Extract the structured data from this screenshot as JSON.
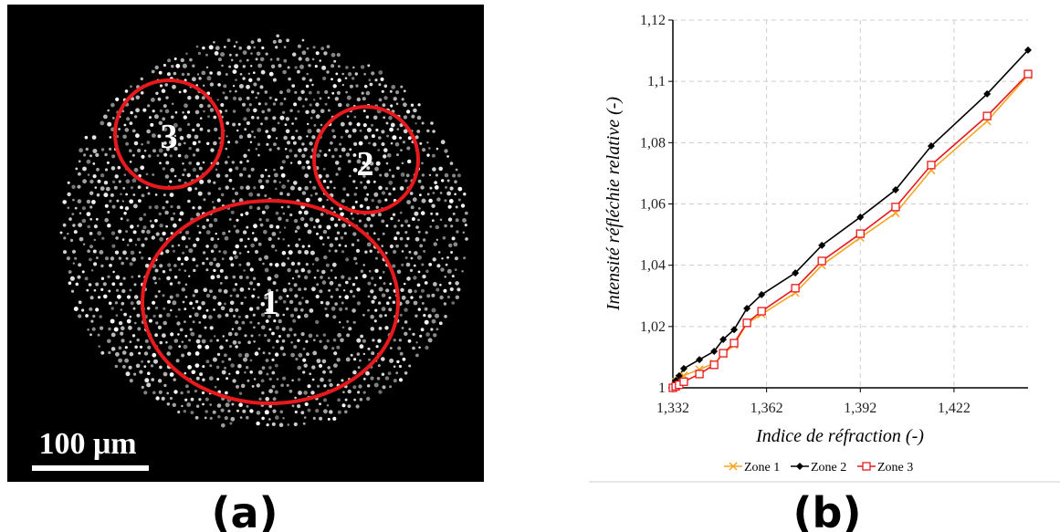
{
  "image_panel": {
    "zone_labels": [
      "1",
      "2",
      "3"
    ],
    "scale_bar": "100 μm",
    "panel_label": "(a)"
  },
  "chart_panel_label": "(b)",
  "chart_data": {
    "type": "line",
    "y_label": "Intensité réfléchie relative (-)",
    "x_label": "Indice de réfraction (-)",
    "x": [
      1.332,
      1.3329,
      1.334,
      1.3355,
      1.3405,
      1.3452,
      1.3481,
      1.3516,
      1.3557,
      1.3604,
      1.3712,
      1.3797,
      1.392,
      1.4033,
      1.4147,
      1.4326,
      1.4457
    ],
    "series": [
      {
        "name": "Zone 1",
        "color": "#f5a623",
        "marker": "x",
        "values": [
          1.0,
          1.002,
          1.003,
          1.004,
          1.006,
          1.008,
          1.011,
          1.014,
          1.021,
          1.024,
          1.031,
          1.04,
          1.049,
          1.057,
          1.071,
          1.087,
          1.102
        ]
      },
      {
        "name": "Zone 2",
        "color": "#000000",
        "marker": "diamond",
        "values": [
          1.0,
          1.0024,
          1.0039,
          1.0063,
          1.0092,
          1.0119,
          1.0158,
          1.019,
          1.0259,
          1.0304,
          1.0375,
          1.0465,
          1.0557,
          1.0646,
          1.0789,
          1.0959,
          1.1102
        ]
      },
      {
        "name": "Zone 3",
        "color": "#e8191c",
        "marker": "square",
        "values": [
          1.0,
          1.0005,
          1.001,
          1.002,
          1.0045,
          1.0075,
          1.0113,
          1.0146,
          1.0212,
          1.025,
          1.0325,
          1.0414,
          1.0503,
          1.059,
          1.0727,
          1.0887,
          1.1024
        ]
      }
    ],
    "xlim": [
      1.332,
      1.4457
    ],
    "ylim": [
      1,
      1.12
    ],
    "xticks": [
      {
        "value": 1.332,
        "label": "1,332"
      },
      {
        "value": 1.362,
        "label": "1,362"
      },
      {
        "value": 1.392,
        "label": "1,392"
      },
      {
        "value": 1.422,
        "label": "1,422"
      }
    ],
    "yticks": [
      1,
      {
        "value": 1.02,
        "label": "1,02"
      },
      {
        "value": 1.04,
        "label": "1,04"
      },
      {
        "value": 1.06,
        "label": "1,06"
      },
      {
        "value": 1.08,
        "label": "1,08"
      },
      {
        "value": 1.1,
        "label": "1,1"
      },
      {
        "value": 1.12,
        "label": "1,12"
      }
    ],
    "grid": true,
    "legend": "bottom"
  }
}
